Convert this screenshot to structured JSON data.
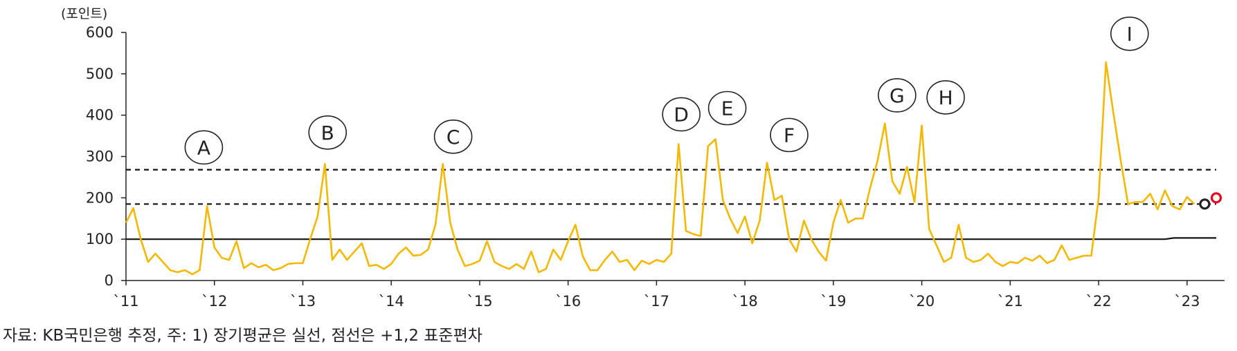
{
  "chart_data": {
    "type": "line",
    "unit_label": "(포인트)",
    "source_note": "자료: KB국민은행 추정, 주: 1) 장기평균은 실선, 점선은 +1,2 표준편차",
    "ylim": [
      0,
      600
    ],
    "yticks": [
      "0",
      "100",
      "200",
      "300",
      "400",
      "500",
      "600"
    ],
    "xlim": [
      2011.0,
      2023.33
    ],
    "xticks": [
      {
        "label": "`11",
        "x": 2011
      },
      {
        "label": "`12",
        "x": 2012
      },
      {
        "label": "`13",
        "x": 2013
      },
      {
        "label": "`14",
        "x": 2014
      },
      {
        "label": "`15",
        "x": 2015
      },
      {
        "label": "`16",
        "x": 2016
      },
      {
        "label": "`17",
        "x": 2017
      },
      {
        "label": "`18",
        "x": 2018
      },
      {
        "label": "`19",
        "x": 2019
      },
      {
        "label": "`20",
        "x": 2020
      },
      {
        "label": "`21",
        "x": 2021
      },
      {
        "label": "`22",
        "x": 2022
      },
      {
        "label": "`23",
        "x": 2023
      }
    ],
    "grid": false,
    "dashed_levels": [
      185,
      268
    ],
    "long_term_average": {
      "x": [
        2011.0,
        2022.75,
        2022.85,
        2023.33
      ],
      "y": [
        100,
        100,
        103,
        103
      ]
    },
    "series": [
      {
        "color": "#F5B800",
        "x": [
          2011.0,
          2011.083,
          2011.167,
          2011.25,
          2011.333,
          2011.417,
          2011.5,
          2011.583,
          2011.667,
          2011.75,
          2011.833,
          2011.917,
          2012.0,
          2012.083,
          2012.167,
          2012.25,
          2012.333,
          2012.417,
          2012.5,
          2012.583,
          2012.667,
          2012.75,
          2012.833,
          2012.917,
          2013.0,
          2013.083,
          2013.167,
          2013.25,
          2013.333,
          2013.417,
          2013.5,
          2013.583,
          2013.667,
          2013.75,
          2013.833,
          2013.917,
          2014.0,
          2014.083,
          2014.167,
          2014.25,
          2014.333,
          2014.417,
          2014.5,
          2014.583,
          2014.667,
          2014.75,
          2014.833,
          2014.917,
          2015.0,
          2015.083,
          2015.167,
          2015.25,
          2015.333,
          2015.417,
          2015.5,
          2015.583,
          2015.667,
          2015.75,
          2015.833,
          2015.917,
          2016.0,
          2016.083,
          2016.167,
          2016.25,
          2016.333,
          2016.417,
          2016.5,
          2016.583,
          2016.667,
          2016.75,
          2016.833,
          2016.917,
          2017.0,
          2017.083,
          2017.167,
          2017.25,
          2017.333,
          2017.417,
          2017.5,
          2017.583,
          2017.667,
          2017.75,
          2017.833,
          2017.917,
          2018.0,
          2018.083,
          2018.167,
          2018.25,
          2018.333,
          2018.417,
          2018.5,
          2018.583,
          2018.667,
          2018.75,
          2018.833,
          2018.917,
          2019.0,
          2019.083,
          2019.167,
          2019.25,
          2019.333,
          2019.417,
          2019.5,
          2019.583,
          2019.667,
          2019.75,
          2019.833,
          2019.917,
          2020.0,
          2020.083,
          2020.167,
          2020.25,
          2020.333,
          2020.417,
          2020.5,
          2020.583,
          2020.667,
          2020.75,
          2020.833,
          2020.917,
          2021.0,
          2021.083,
          2021.167,
          2021.25,
          2021.333,
          2021.417,
          2021.5,
          2021.583,
          2021.667,
          2021.75,
          2021.833,
          2021.917,
          2022.0,
          2022.083,
          2022.167,
          2022.25,
          2022.333,
          2022.417,
          2022.5,
          2022.583,
          2022.667,
          2022.75,
          2022.833,
          2022.917,
          2023.0,
          2023.083
        ],
        "y": [
          140,
          175,
          100,
          45,
          65,
          45,
          25,
          20,
          25,
          15,
          25,
          180,
          80,
          55,
          50,
          95,
          30,
          42,
          32,
          38,
          25,
          30,
          40,
          42,
          42,
          100,
          155,
          282,
          50,
          75,
          50,
          70,
          90,
          35,
          38,
          28,
          40,
          65,
          80,
          60,
          62,
          75,
          135,
          282,
          140,
          75,
          35,
          40,
          48,
          95,
          45,
          35,
          28,
          40,
          28,
          70,
          20,
          28,
          75,
          50,
          95,
          135,
          58,
          25,
          25,
          50,
          70,
          45,
          50,
          25,
          48,
          40,
          50,
          45,
          65,
          330,
          120,
          112,
          108,
          325,
          342,
          195,
          150,
          115,
          155,
          90,
          145,
          285,
          195,
          205,
          100,
          70,
          145,
          100,
          70,
          48,
          140,
          195,
          140,
          150,
          150,
          225,
          290,
          380,
          240,
          210,
          275,
          190,
          375,
          125,
          85,
          45,
          55,
          135,
          55,
          45,
          50,
          65,
          45,
          35,
          45,
          42,
          55,
          48,
          60,
          42,
          50,
          85,
          50,
          55,
          60,
          60,
          200,
          528,
          405,
          290,
          185,
          190,
          190,
          210,
          172,
          218,
          180,
          172,
          202,
          185
        ]
      }
    ],
    "end_markers": [
      {
        "x": 2023.2,
        "y": 185,
        "color": "#222222"
      },
      {
        "x": 2023.33,
        "y": 200,
        "color": "#E8001C"
      }
    ],
    "annotations": [
      {
        "label": "A",
        "x": 2011.88,
        "y": 322
      },
      {
        "label": "B",
        "x": 2013.28,
        "y": 358
      },
      {
        "label": "C",
        "x": 2014.7,
        "y": 348
      },
      {
        "label": "D",
        "x": 2017.28,
        "y": 402
      },
      {
        "label": "E",
        "x": 2017.8,
        "y": 417
      },
      {
        "label": "F",
        "x": 2018.5,
        "y": 352
      },
      {
        "label": "G",
        "x": 2019.72,
        "y": 448
      },
      {
        "label": "H",
        "x": 2020.27,
        "y": 443
      },
      {
        "label": "I",
        "x": 2022.35,
        "y": 597
      }
    ]
  }
}
